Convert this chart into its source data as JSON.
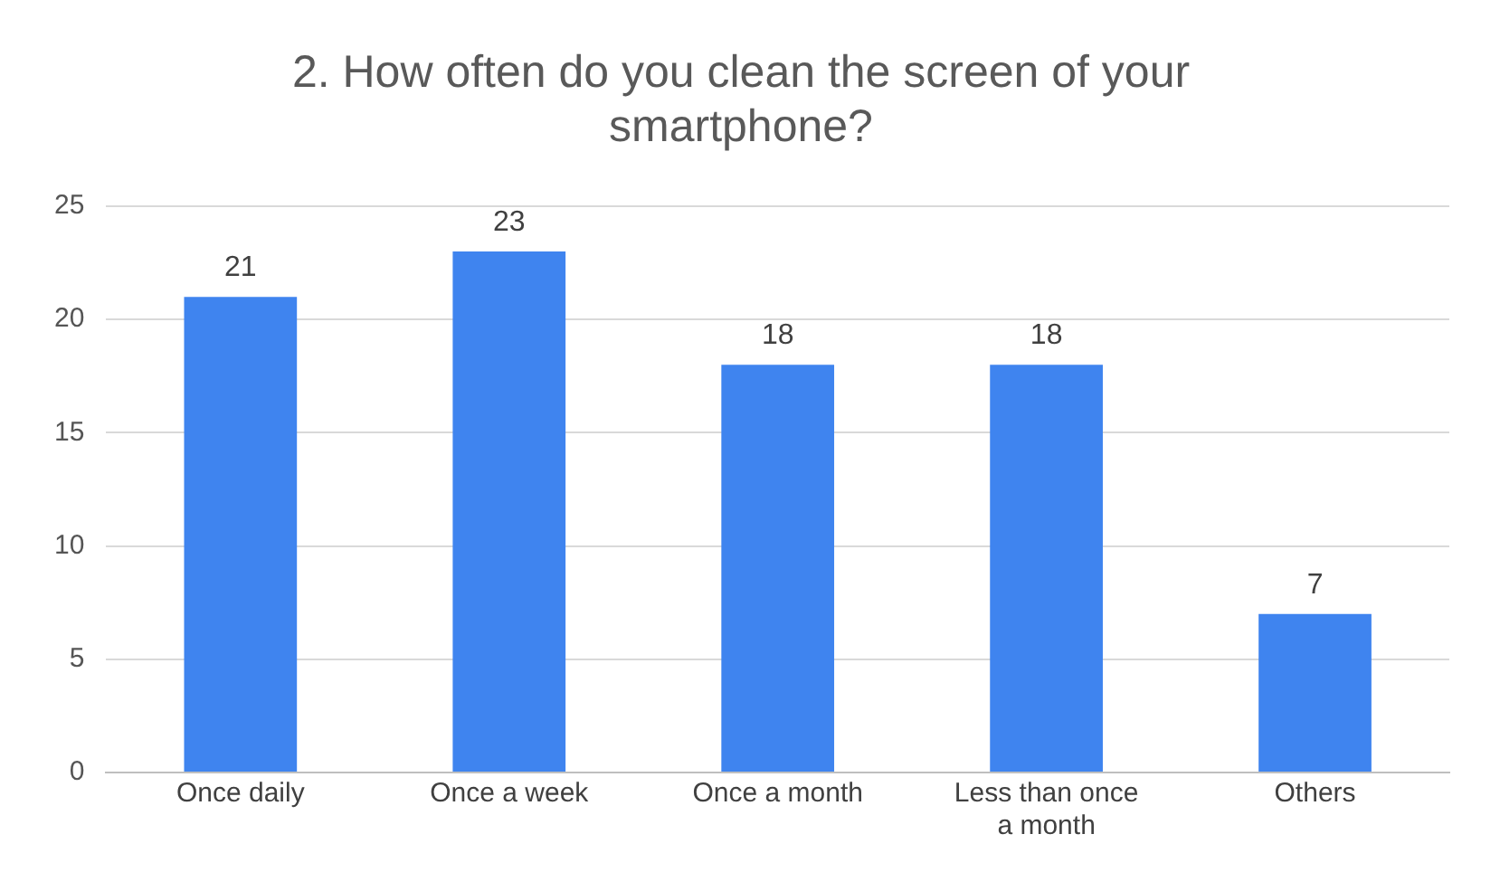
{
  "chart_data": {
    "type": "bar",
    "title": "2. How often do you clean the screen of your smartphone?",
    "categories": [
      "Once daily",
      "Once a week",
      "Once a month",
      "Less than once a month",
      "Others"
    ],
    "values": [
      21,
      23,
      18,
      18,
      7
    ],
    "color": "#3f84ef",
    "ylim": [
      0,
      25
    ],
    "yticks": [
      0,
      5,
      10,
      15,
      20,
      25
    ],
    "grid": "y",
    "data_labels": true
  }
}
